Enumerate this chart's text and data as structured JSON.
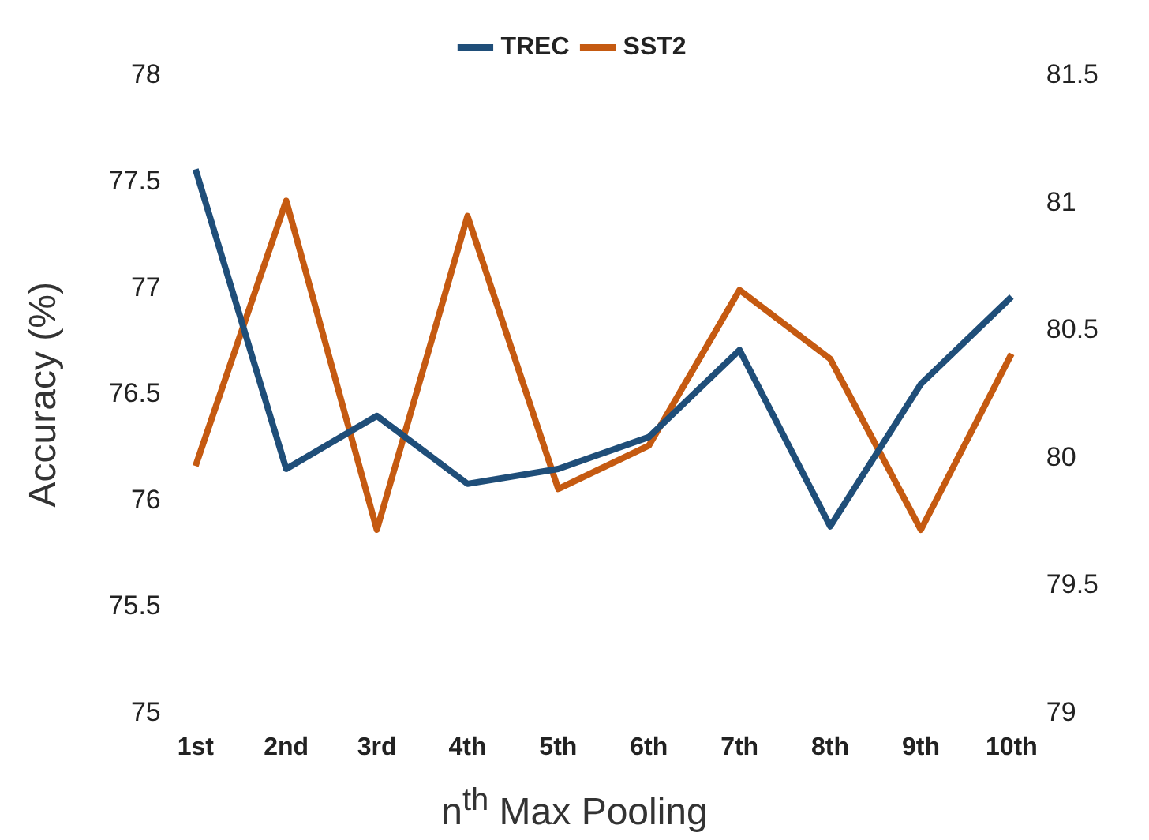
{
  "chart_data": {
    "type": "line",
    "xlabel": "n$^{th}$ Max Pooling",
    "ylabel": "Accuracy (%)",
    "categories": [
      "1st",
      "2nd",
      "3rd",
      "4th",
      "5th",
      "6th",
      "7th",
      "8th",
      "9th",
      "10th"
    ],
    "series": [
      {
        "name": "TREC",
        "color": "#1f4e79",
        "values": [
          77.56,
          76.15,
          76.4,
          76.08,
          76.15,
          76.3,
          76.71,
          75.88,
          76.55,
          76.96
        ]
      },
      {
        "name": "SST2",
        "color": "#c55a11",
        "axis": "y2",
        "values": [
          79.97,
          81.01,
          79.72,
          80.95,
          79.88,
          80.05,
          80.66,
          80.39,
          79.72,
          80.41
        ]
      }
    ],
    "ylim": [
      75,
      78
    ],
    "yticks": [
      75,
      75.5,
      76,
      76.5,
      77,
      77.5,
      78
    ],
    "y2lim": [
      79,
      81.5
    ],
    "y2ticks": [
      79,
      79.5,
      80,
      80.5,
      81,
      81.5
    ],
    "grid": false,
    "legend": "top",
    "marker": "none",
    "line_style": "solid"
  }
}
